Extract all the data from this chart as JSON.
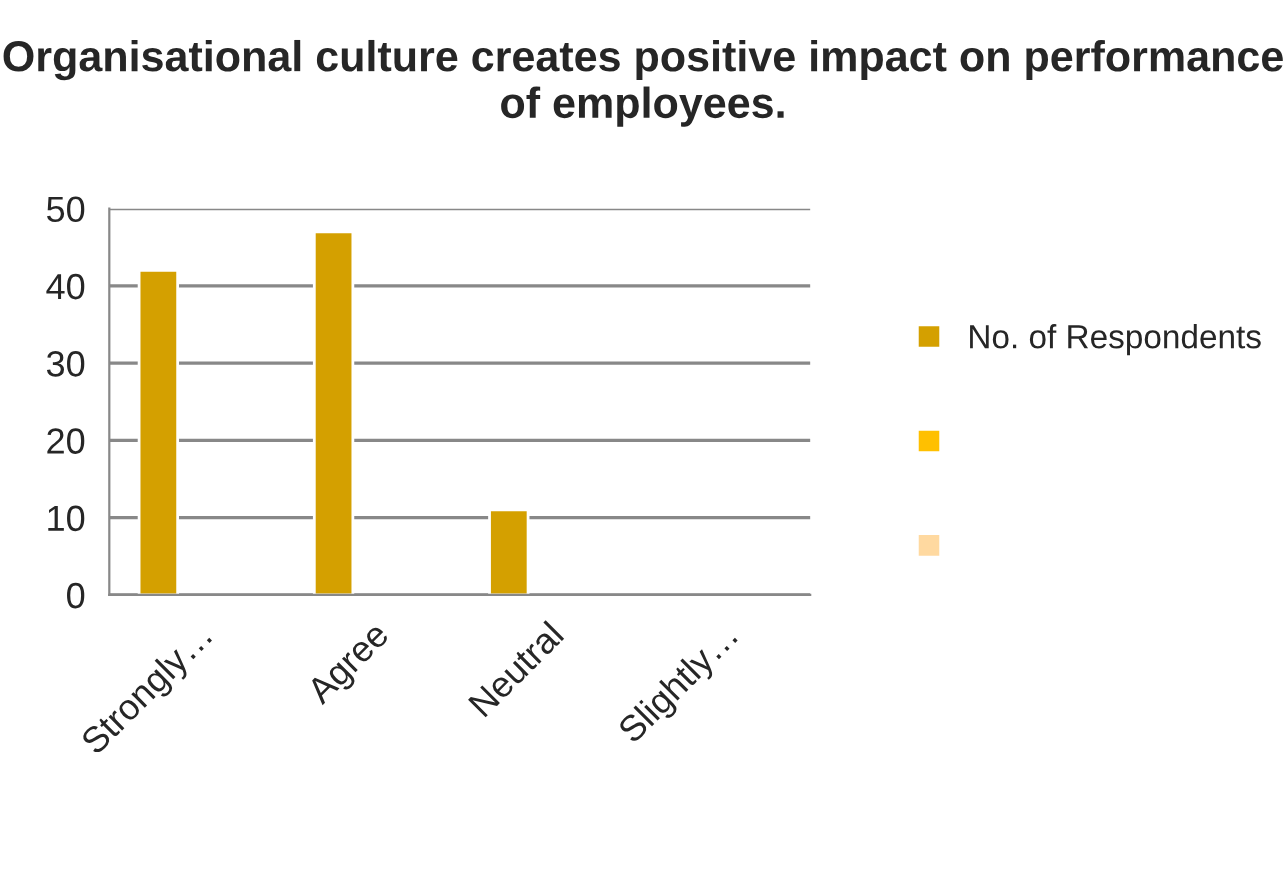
{
  "chart_data": {
    "type": "bar",
    "title": "Organisational culture creates positive impact on performance of employees.",
    "categories": [
      "Strongly…",
      "Agree",
      "Neutral",
      "Slightly…"
    ],
    "series": [
      {
        "name": "No. of Respondents",
        "color": "#d4a000",
        "values": [
          42,
          47,
          11,
          null
        ]
      },
      {
        "color": "#ffc000",
        "values": [
          null,
          null,
          null,
          null
        ]
      },
      {
        "color": "#ffd9a0",
        "values": [
          null,
          null,
          null,
          null
        ]
      }
    ],
    "ylim": [
      0,
      50
    ],
    "yticks": [
      0,
      10,
      20,
      30,
      40,
      50
    ],
    "grid": "y",
    "legend": "right"
  }
}
